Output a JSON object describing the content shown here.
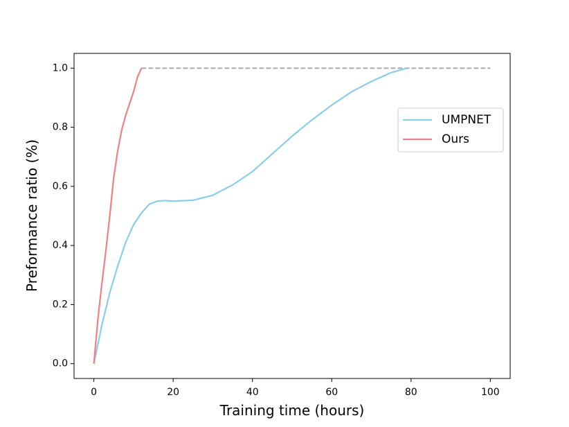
{
  "chart_data": {
    "type": "line",
    "xlabel": "Training time (hours)",
    "ylabel": "Preformance ratio (%)",
    "xlim": [
      -5,
      105
    ],
    "ylim": [
      -0.05,
      1.05
    ],
    "xticks": [
      0,
      20,
      40,
      60,
      80,
      100
    ],
    "yticks": [
      {
        "value": 0,
        "label": "0.0"
      },
      {
        "value": 0.2,
        "label": "0.2"
      },
      {
        "value": 0.4,
        "label": "0.4"
      },
      {
        "value": 0.6,
        "label": "0.6"
      },
      {
        "value": 0.8,
        "label": "0.8"
      },
      {
        "value": 1,
        "label": "1.0"
      }
    ],
    "legend": "upper right",
    "series": [
      {
        "name": "UMPNET",
        "color": "#87ceeb",
        "x": [
          0,
          2,
          4,
          6,
          8,
          10,
          12,
          14,
          16,
          18,
          20,
          25,
          30,
          35,
          40,
          45,
          50,
          55,
          60,
          65,
          70,
          75,
          79
        ],
        "values": [
          0,
          0.13,
          0.24,
          0.33,
          0.41,
          0.47,
          0.51,
          0.54,
          0.55,
          0.552,
          0.55,
          0.553,
          0.57,
          0.605,
          0.65,
          0.71,
          0.77,
          0.825,
          0.875,
          0.92,
          0.955,
          0.985,
          1.0
        ]
      },
      {
        "name": "Ours",
        "color": "#f08080",
        "x": [
          0,
          1,
          2,
          3,
          4,
          5,
          6,
          7,
          8,
          9,
          10,
          11,
          12
        ],
        "values": [
          0,
          0.15,
          0.27,
          0.38,
          0.5,
          0.63,
          0.72,
          0.79,
          0.84,
          0.88,
          0.92,
          0.97,
          1.0
        ]
      }
    ],
    "reference_line": {
      "x": [
        12,
        100
      ],
      "y": 1.0,
      "color": "#aaaaaa"
    }
  }
}
